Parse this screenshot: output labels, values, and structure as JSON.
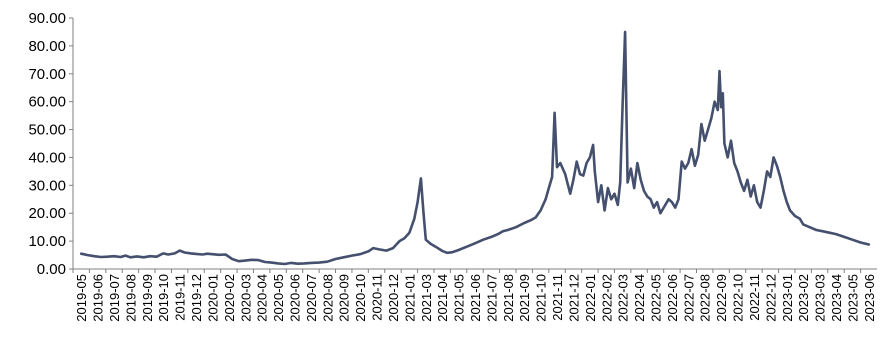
{
  "chart_data": {
    "type": "line",
    "title": "",
    "xlabel": "",
    "ylabel": "",
    "ylim": [
      0,
      90
    ],
    "yticks": [
      "0.00",
      "10.00",
      "20.00",
      "30.00",
      "40.00",
      "50.00",
      "60.00",
      "70.00",
      "80.00",
      "90.00"
    ],
    "xticks": [
      "2019-05",
      "2019-06",
      "2019-07",
      "2019-08",
      "2019-09",
      "2019-10",
      "2019-11",
      "2019-12",
      "2020-01",
      "2020-02",
      "2020-03",
      "2020-04",
      "2020-05",
      "2020-06",
      "2020-07",
      "2020-08",
      "2020-09",
      "2020-10",
      "2020-11",
      "2020-12",
      "2021-01",
      "2021-03",
      "2021-04",
      "2021-05",
      "2021-06",
      "2021-07",
      "2021-08",
      "2021-09",
      "2021-10",
      "2021-11",
      "2021-12",
      "2022-01",
      "2022-02",
      "2022-03",
      "2022-04",
      "2022-05",
      "2022-06",
      "2022-07",
      "2022-08",
      "2022-09",
      "2022-10",
      "2022-11",
      "2022-12",
      "2023-01",
      "2023-02",
      "2023-03",
      "2023-04",
      "2023-05",
      "2023-06"
    ],
    "grid": false,
    "legend": "none",
    "line_color": "#44506e",
    "series": [
      {
        "values": [
          [
            0.0,
            5.5
          ],
          [
            0.4,
            5.0
          ],
          [
            0.8,
            4.6
          ],
          [
            1.2,
            4.3
          ],
          [
            1.6,
            4.4
          ],
          [
            2.0,
            4.6
          ],
          [
            2.4,
            4.3
          ],
          [
            2.7,
            4.8
          ],
          [
            3.0,
            4.2
          ],
          [
            3.4,
            4.5
          ],
          [
            3.8,
            4.2
          ],
          [
            4.2,
            4.6
          ],
          [
            4.6,
            4.4
          ],
          [
            5.0,
            5.6
          ],
          [
            5.3,
            5.2
          ],
          [
            5.7,
            5.6
          ],
          [
            6.0,
            6.6
          ],
          [
            6.3,
            5.9
          ],
          [
            6.7,
            5.6
          ],
          [
            7.0,
            5.4
          ],
          [
            7.4,
            5.2
          ],
          [
            7.7,
            5.5
          ],
          [
            8.0,
            5.3
          ],
          [
            8.4,
            5.1
          ],
          [
            8.8,
            5.2
          ],
          [
            9.2,
            3.6
          ],
          [
            9.6,
            2.8
          ],
          [
            10.0,
            3.0
          ],
          [
            10.4,
            3.3
          ],
          [
            10.8,
            3.2
          ],
          [
            11.2,
            2.5
          ],
          [
            11.6,
            2.3
          ],
          [
            12.0,
            2.0
          ],
          [
            12.4,
            1.8
          ],
          [
            12.8,
            2.2
          ],
          [
            13.2,
            1.9
          ],
          [
            13.6,
            2.0
          ],
          [
            14.0,
            2.2
          ],
          [
            14.5,
            2.3
          ],
          [
            15.0,
            2.6
          ],
          [
            15.5,
            3.6
          ],
          [
            16.0,
            4.2
          ],
          [
            16.5,
            4.8
          ],
          [
            17.0,
            5.3
          ],
          [
            17.5,
            6.3
          ],
          [
            17.8,
            7.5
          ],
          [
            18.2,
            7.0
          ],
          [
            18.6,
            6.6
          ],
          [
            19.0,
            7.5
          ],
          [
            19.4,
            10.0
          ],
          [
            19.7,
            11.0
          ],
          [
            20.0,
            13.0
          ],
          [
            20.3,
            18.0
          ],
          [
            20.5,
            24.0
          ],
          [
            20.7,
            32.5
          ],
          [
            20.85,
            21.0
          ],
          [
            21.0,
            10.5
          ],
          [
            21.3,
            9.0
          ],
          [
            21.6,
            8.0
          ],
          [
            22.0,
            6.5
          ],
          [
            22.3,
            5.8
          ],
          [
            22.6,
            6.0
          ],
          [
            23.0,
            6.8
          ],
          [
            23.5,
            8.0
          ],
          [
            24.0,
            9.2
          ],
          [
            24.5,
            10.5
          ],
          [
            25.0,
            11.5
          ],
          [
            25.4,
            12.5
          ],
          [
            25.7,
            13.5
          ],
          [
            26.0,
            14.0
          ],
          [
            26.5,
            15.0
          ],
          [
            27.0,
            16.5
          ],
          [
            27.4,
            17.5
          ],
          [
            27.7,
            18.5
          ],
          [
            28.0,
            21.0
          ],
          [
            28.3,
            25.0
          ],
          [
            28.5,
            29.0
          ],
          [
            28.7,
            33.0
          ],
          [
            28.85,
            56.0
          ],
          [
            29.0,
            36.5
          ],
          [
            29.2,
            38.0
          ],
          [
            29.5,
            34.0
          ],
          [
            29.8,
            27.0
          ],
          [
            30.0,
            32.0
          ],
          [
            30.2,
            38.5
          ],
          [
            30.4,
            34.0
          ],
          [
            30.6,
            33.5
          ],
          [
            30.8,
            38.0
          ],
          [
            31.0,
            40.0
          ],
          [
            31.2,
            44.5
          ],
          [
            31.3,
            35.0
          ],
          [
            31.5,
            24.0
          ],
          [
            31.7,
            30.0
          ],
          [
            31.9,
            21.0
          ],
          [
            32.1,
            29.0
          ],
          [
            32.3,
            25.0
          ],
          [
            32.5,
            27.0
          ],
          [
            32.7,
            23.0
          ],
          [
            32.85,
            31.0
          ],
          [
            33.0,
            60.0
          ],
          [
            33.15,
            85.0
          ],
          [
            33.3,
            31.0
          ],
          [
            33.5,
            36.0
          ],
          [
            33.7,
            29.0
          ],
          [
            33.9,
            38.0
          ],
          [
            34.1,
            32.0
          ],
          [
            34.3,
            28.0
          ],
          [
            34.5,
            26.0
          ],
          [
            34.7,
            25.0
          ],
          [
            34.9,
            22.0
          ],
          [
            35.1,
            24.0
          ],
          [
            35.3,
            20.0
          ],
          [
            35.5,
            22.0
          ],
          [
            35.8,
            25.0
          ],
          [
            36.0,
            24.0
          ],
          [
            36.2,
            22.0
          ],
          [
            36.4,
            25.0
          ],
          [
            36.6,
            38.5
          ],
          [
            36.8,
            36.0
          ],
          [
            37.0,
            38.0
          ],
          [
            37.2,
            43.0
          ],
          [
            37.4,
            37.0
          ],
          [
            37.6,
            41.0
          ],
          [
            37.8,
            52.0
          ],
          [
            38.0,
            46.0
          ],
          [
            38.2,
            50.0
          ],
          [
            38.4,
            54.0
          ],
          [
            38.6,
            60.0
          ],
          [
            38.8,
            57.0
          ],
          [
            38.9,
            71.0
          ],
          [
            39.0,
            58.0
          ],
          [
            39.1,
            63.0
          ],
          [
            39.2,
            45.0
          ],
          [
            39.4,
            40.0
          ],
          [
            39.6,
            46.0
          ],
          [
            39.8,
            38.0
          ],
          [
            40.0,
            35.0
          ],
          [
            40.2,
            31.0
          ],
          [
            40.4,
            28.0
          ],
          [
            40.6,
            32.0
          ],
          [
            40.8,
            26.0
          ],
          [
            41.0,
            30.0
          ],
          [
            41.2,
            24.0
          ],
          [
            41.4,
            22.0
          ],
          [
            41.6,
            28.0
          ],
          [
            41.8,
            35.0
          ],
          [
            42.0,
            33.0
          ],
          [
            42.2,
            40.0
          ],
          [
            42.4,
            37.0
          ],
          [
            42.6,
            33.0
          ],
          [
            42.8,
            28.0
          ],
          [
            43.0,
            24.0
          ],
          [
            43.2,
            21.0
          ],
          [
            43.5,
            19.0
          ],
          [
            43.8,
            18.0
          ],
          [
            44.0,
            16.0
          ],
          [
            44.4,
            15.0
          ],
          [
            44.8,
            14.0
          ],
          [
            45.2,
            13.5
          ],
          [
            45.6,
            13.0
          ],
          [
            46.0,
            12.5
          ],
          [
            46.5,
            11.5
          ],
          [
            47.0,
            10.5
          ],
          [
            47.5,
            9.5
          ],
          [
            48.0,
            8.8
          ]
        ]
      }
    ]
  }
}
